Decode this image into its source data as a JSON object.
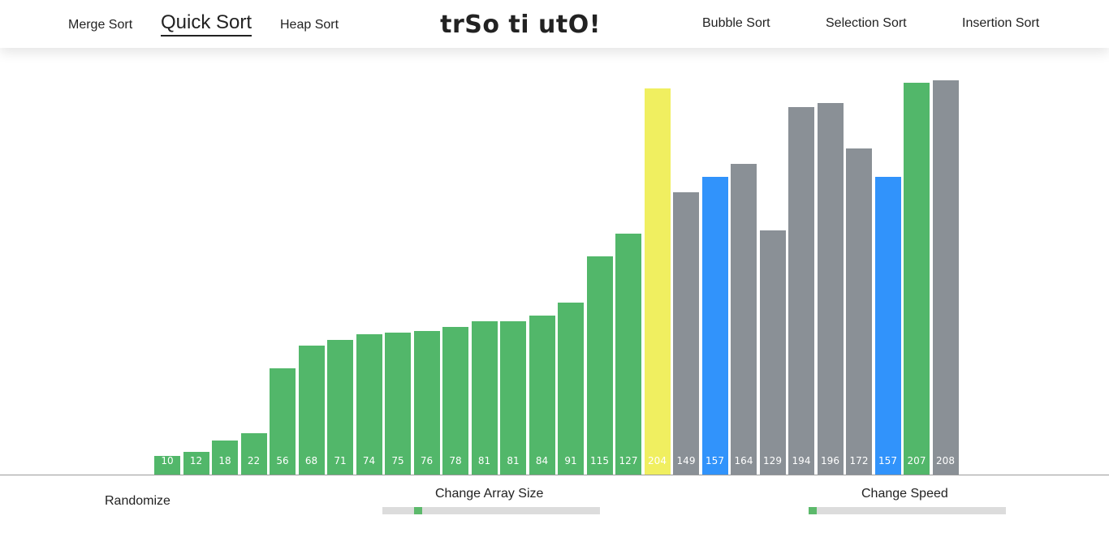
{
  "header": {
    "title": "trSo ti utO!",
    "nav_left": [
      {
        "label": "Merge Sort",
        "active": false
      },
      {
        "label": "Quick Sort",
        "active": true
      },
      {
        "label": "Heap Sort",
        "active": false
      }
    ],
    "nav_right": [
      {
        "label": "Bubble Sort",
        "active": false
      },
      {
        "label": "Selection Sort",
        "active": false
      },
      {
        "label": "Insertion Sort",
        "active": false
      }
    ]
  },
  "colors": {
    "sorted": "#52b76a",
    "unsorted": "#8a9096",
    "pivot": "#f0ef60",
    "compare": "#3193fb"
  },
  "chart_data": {
    "type": "bar",
    "values": [
      10,
      12,
      18,
      22,
      56,
      68,
      71,
      74,
      75,
      76,
      78,
      81,
      81,
      84,
      91,
      115,
      127,
      204,
      149,
      157,
      164,
      129,
      194,
      196,
      172,
      157,
      207,
      208
    ],
    "states": [
      "sorted",
      "sorted",
      "sorted",
      "sorted",
      "sorted",
      "sorted",
      "sorted",
      "sorted",
      "sorted",
      "sorted",
      "sorted",
      "sorted",
      "sorted",
      "sorted",
      "sorted",
      "sorted",
      "sorted",
      "pivot",
      "unsorted",
      "compare",
      "unsorted",
      "unsorted",
      "unsorted",
      "unsorted",
      "unsorted",
      "compare",
      "sorted",
      "unsorted"
    ],
    "labels": [
      "10",
      "12",
      "18",
      "22",
      "56",
      "68",
      "71",
      "74",
      "75",
      "76",
      "78",
      "81",
      "81",
      "84",
      "91",
      "115",
      "127",
      "204",
      "149",
      "157",
      "164",
      "129",
      "194",
      "196",
      "172",
      "157",
      "207",
      "208"
    ]
  },
  "controls": {
    "randomize_label": "Randomize",
    "array_size_label": "Change Array Size",
    "array_size_value": 0.15,
    "speed_label": "Change Speed",
    "speed_value": 0.0
  }
}
